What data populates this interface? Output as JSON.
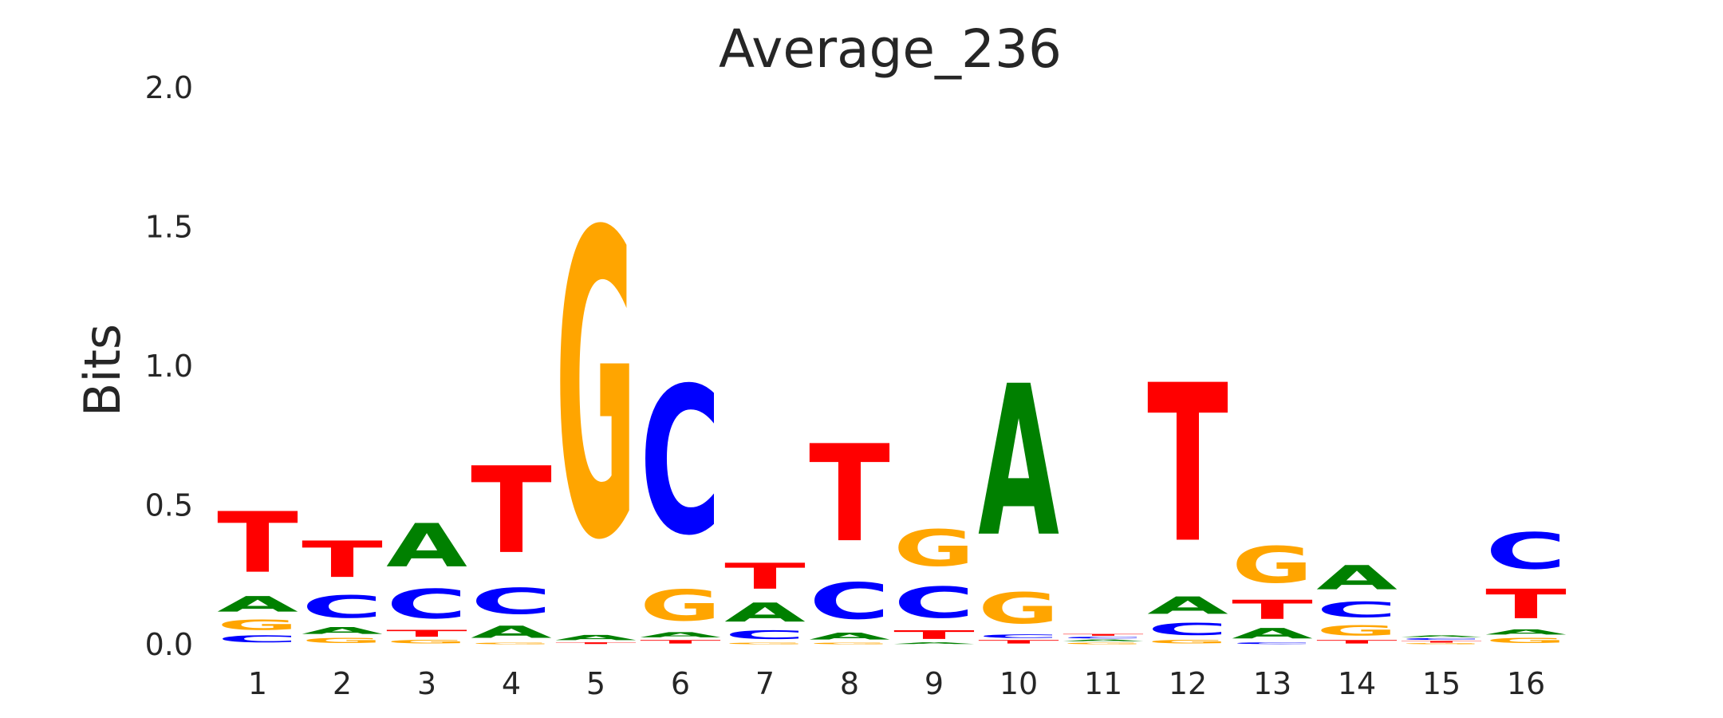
{
  "chart_data": {
    "type": "sequence-logo",
    "title": "Average_236",
    "ylabel": "Bits",
    "xlabel": "",
    "ylim": [
      0,
      2
    ],
    "yticks": [
      "0.0",
      "0.5",
      "1.0",
      "1.5",
      "2.0"
    ],
    "ytick_values": [
      0,
      0.5,
      1.0,
      1.5,
      2.0
    ],
    "grid": false,
    "colors": {
      "A": "#008000",
      "C": "#0000ff",
      "G": "#ffa500",
      "T": "#ff0000"
    },
    "positions": [
      {
        "label": "1",
        "letters": [
          [
            "C",
            0.04
          ],
          [
            "G",
            0.06
          ],
          [
            "A",
            0.09
          ],
          [
            "T",
            0.35
          ]
        ]
      },
      {
        "label": "2",
        "letters": [
          [
            "G",
            0.03
          ],
          [
            "A",
            0.04
          ],
          [
            "C",
            0.13
          ],
          [
            "T",
            0.21
          ]
        ]
      },
      {
        "label": "3",
        "letters": [
          [
            "G",
            0.02
          ],
          [
            "T",
            0.04
          ],
          [
            "C",
            0.17
          ],
          [
            "A",
            0.25
          ]
        ]
      },
      {
        "label": "4",
        "letters": [
          [
            "G",
            0.01
          ],
          [
            "A",
            0.07
          ],
          [
            "C",
            0.15
          ],
          [
            "T",
            0.5
          ]
        ]
      },
      {
        "label": "5",
        "letters": [
          [
            "T",
            0.01
          ],
          [
            "A",
            0.03
          ],
          [
            "G",
            1.76
          ]
        ]
      },
      {
        "label": "6",
        "letters": [
          [
            "T",
            0.02
          ],
          [
            "A",
            0.03
          ],
          [
            "G",
            0.18
          ],
          [
            "C",
            0.85
          ]
        ]
      },
      {
        "label": "7",
        "letters": [
          [
            "G",
            0.01
          ],
          [
            "C",
            0.05
          ],
          [
            "A",
            0.11
          ],
          [
            "T",
            0.15
          ]
        ]
      },
      {
        "label": "8",
        "letters": [
          [
            "G",
            0.01
          ],
          [
            "A",
            0.04
          ],
          [
            "C",
            0.21
          ],
          [
            "T",
            0.56
          ]
        ]
      },
      {
        "label": "9",
        "letters": [
          [
            "A",
            0.01
          ],
          [
            "T",
            0.05
          ],
          [
            "C",
            0.18
          ],
          [
            "G",
            0.21
          ]
        ]
      },
      {
        "label": "10",
        "letters": [
          [
            "T",
            0.02
          ],
          [
            "C",
            0.02
          ],
          [
            "G",
            0.18
          ],
          [
            "A",
            0.87
          ]
        ]
      },
      {
        "label": "11",
        "letters": [
          [
            "G",
            0.01
          ],
          [
            "A",
            0.01
          ],
          [
            "C",
            0.01
          ],
          [
            "T",
            0.01
          ]
        ]
      },
      {
        "label": "12",
        "letters": [
          [
            "G",
            0.02
          ],
          [
            "C",
            0.07
          ],
          [
            "A",
            0.1
          ],
          [
            "T",
            0.91
          ]
        ]
      },
      {
        "label": "13",
        "letters": [
          [
            "C",
            0.01
          ],
          [
            "A",
            0.06
          ],
          [
            "T",
            0.11
          ],
          [
            "G",
            0.21
          ]
        ]
      },
      {
        "label": "14",
        "letters": [
          [
            "T",
            0.02
          ],
          [
            "G",
            0.06
          ],
          [
            "C",
            0.09
          ],
          [
            "A",
            0.14
          ]
        ]
      },
      {
        "label": "15",
        "letters": [
          [
            "G",
            0.005
          ],
          [
            "T",
            0.01
          ],
          [
            "C",
            0.01
          ],
          [
            "A",
            0.01
          ]
        ]
      },
      {
        "label": "16",
        "letters": [
          [
            "G",
            0.03
          ],
          [
            "A",
            0.03
          ],
          [
            "T",
            0.17
          ],
          [
            "C",
            0.21
          ]
        ]
      }
    ]
  }
}
